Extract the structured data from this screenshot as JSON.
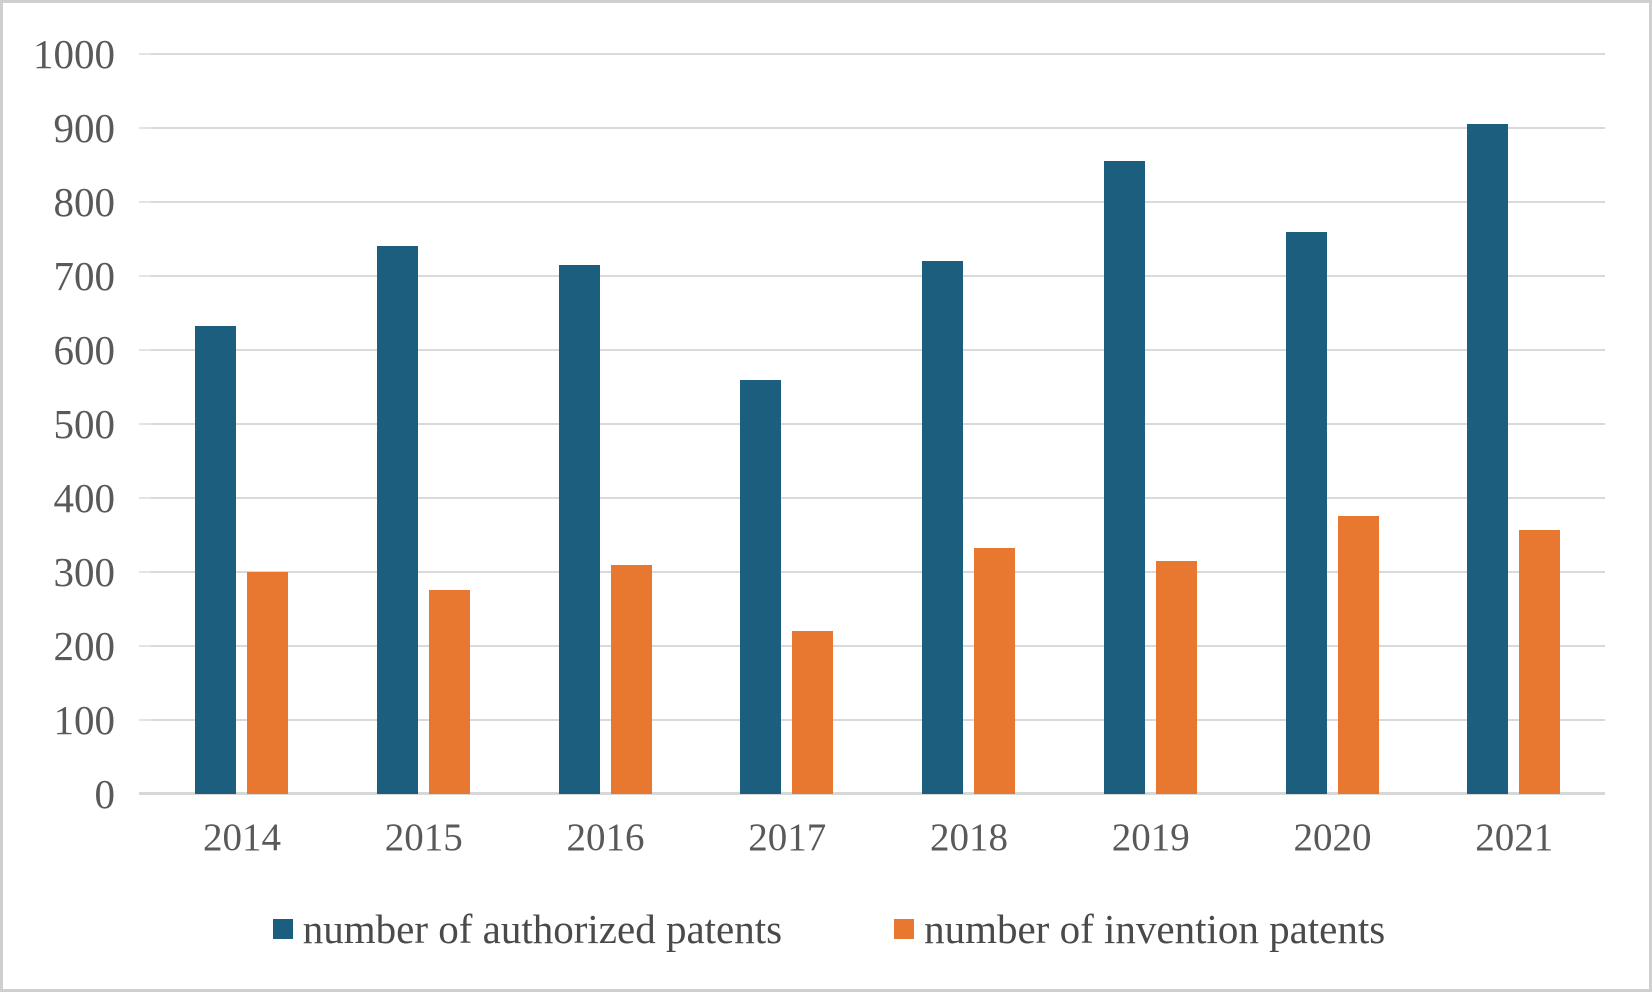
{
  "chart_data": {
    "type": "bar",
    "title": "",
    "categories": [
      "2014",
      "2015",
      "2016",
      "2017",
      "2018",
      "2019",
      "2020",
      "2021"
    ],
    "series": [
      {
        "name": "number of authorized patents",
        "color": "#1B5E7E",
        "values": [
          633,
          740,
          715,
          560,
          720,
          855,
          760,
          905
        ]
      },
      {
        "name": "number of invention patents",
        "color": "#E8782F",
        "values": [
          300,
          275,
          310,
          220,
          332,
          315,
          375,
          357
        ]
      }
    ],
    "y_ticks": [
      0,
      100,
      200,
      300,
      400,
      500,
      600,
      700,
      800,
      900,
      1000
    ],
    "ylim": [
      0,
      1000
    ],
    "xlabel": "",
    "ylabel": "",
    "grid": "horizontal",
    "legend_position": "bottom"
  },
  "colors": {
    "bar_authorized": "#1B5E7E",
    "bar_invention": "#E8782F",
    "grid_line": "#D9D9D9",
    "axis_line": "#D7D7D7",
    "tick_text": "#595959",
    "legend_text": "#4A4A4A",
    "frame_border": "#CFCFCF",
    "background": "#FFFFFF"
  }
}
